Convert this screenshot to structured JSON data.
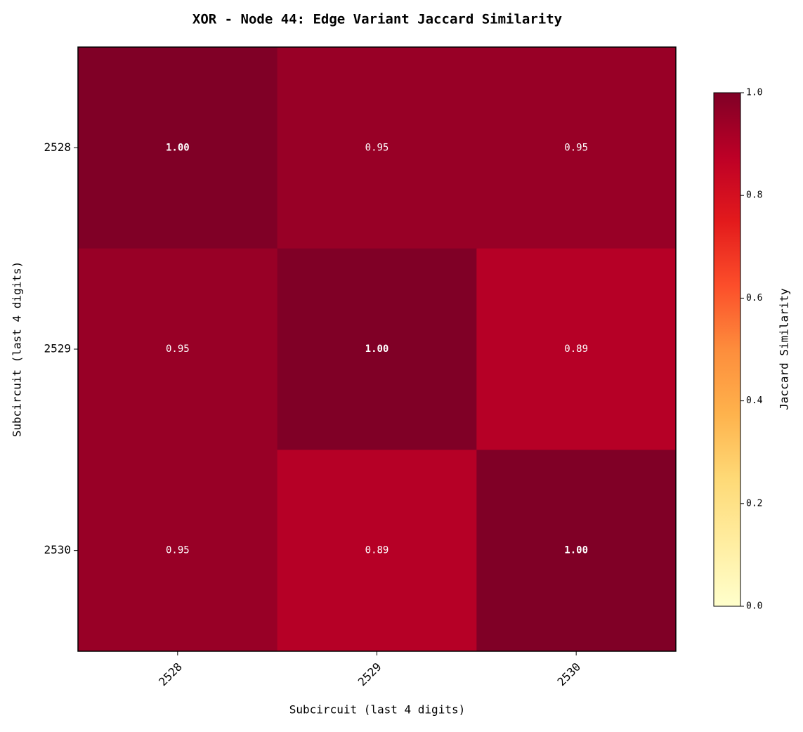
{
  "chart_data": {
    "type": "heatmap",
    "title": "XOR - Node 44: Edge Variant Jaccard Similarity",
    "xlabel": "Subcircuit (last 4 digits)",
    "ylabel": "Subcircuit (last 4 digits)",
    "categories": [
      "2528",
      "2529",
      "2530"
    ],
    "y_categories": [
      "2528",
      "2529",
      "2530"
    ],
    "values": [
      [
        1,
        0.95,
        0.95
      ],
      [
        0.95,
        1,
        0.89
      ],
      [
        0.95,
        0.89,
        1
      ]
    ],
    "value_labels": [
      [
        "1.00",
        "0.95",
        "0.95"
      ],
      [
        "0.95",
        "1.00",
        "0.89"
      ],
      [
        "0.95",
        "0.89",
        "1.00"
      ]
    ],
    "colormap": [
      "#ffffcc",
      "#ffeda0",
      "#fed976",
      "#feb24c",
      "#fd8d3c",
      "#fc4e2a",
      "#e31a1c",
      "#bd0026",
      "#800026"
    ],
    "colorbar_label": "Jaccard Similarity",
    "zlim": [
      0,
      1
    ],
    "zticks": [
      {
        "value": 0,
        "label": "0.0"
      },
      0.2,
      0.4,
      0.6,
      0.8,
      {
        "value": 1,
        "label": "1.0"
      }
    ]
  }
}
